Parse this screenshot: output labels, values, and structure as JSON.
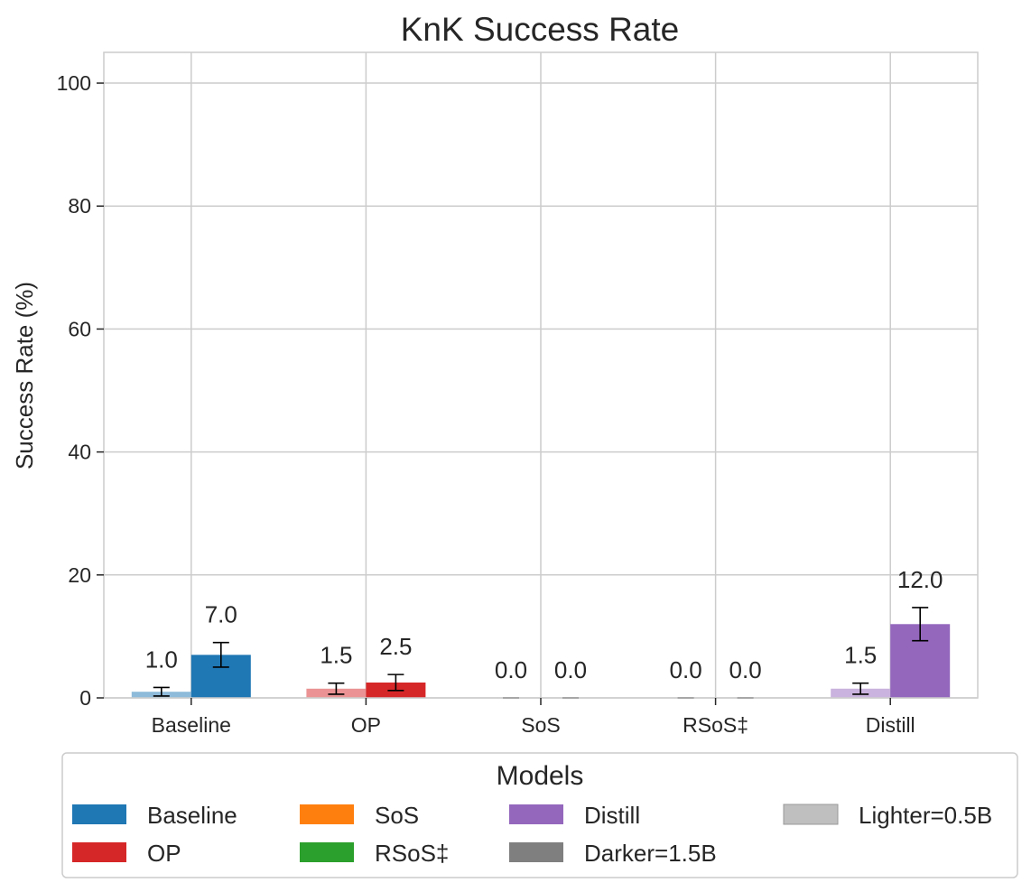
{
  "chart_data": {
    "type": "bar",
    "title": "KnK Success Rate",
    "xlabel": "",
    "ylabel": "Success Rate (%)",
    "ylim": [
      0,
      105
    ],
    "yticks": [
      0,
      20,
      40,
      60,
      80,
      100
    ],
    "grid": true,
    "categories": [
      "Baseline",
      "OP",
      "SoS",
      "RSoS‡",
      "Distill"
    ],
    "category_colors": [
      "#1f77b4",
      "#d62728",
      "#ff7f0e",
      "#2ca02c",
      "#9467bd"
    ],
    "series": [
      {
        "name": "Lighter=0.5B",
        "shade": "lighter",
        "values": [
          1.0,
          1.5,
          0.0,
          0.0,
          1.5
        ],
        "errors": [
          0.7,
          0.9,
          0.0,
          0.0,
          0.9
        ],
        "labels": [
          "1.0",
          "1.5",
          "0.0",
          "0.0",
          "1.5"
        ]
      },
      {
        "name": "Darker=1.5B",
        "shade": "darker",
        "values": [
          7.0,
          2.5,
          0.0,
          0.0,
          12.0
        ],
        "errors": [
          2.0,
          1.3,
          0.0,
          0.0,
          2.7
        ],
        "labels": [
          "7.0",
          "2.5",
          "0.0",
          "0.0",
          "12.0"
        ]
      }
    ],
    "legend": {
      "title": "Models",
      "placement": "bottom",
      "entries": [
        {
          "label": "Baseline",
          "color": "#1f77b4"
        },
        {
          "label": "OP",
          "color": "#d62728"
        },
        {
          "label": "SoS",
          "color": "#ff7f0e"
        },
        {
          "label": "RSoS‡",
          "color": "#2ca02c"
        },
        {
          "label": "Distill",
          "color": "#9467bd"
        },
        {
          "label": "Darker=1.5B",
          "color": "#7f7f7f"
        },
        {
          "label": "Lighter=0.5B",
          "color": "#bfbfbf"
        }
      ]
    }
  }
}
